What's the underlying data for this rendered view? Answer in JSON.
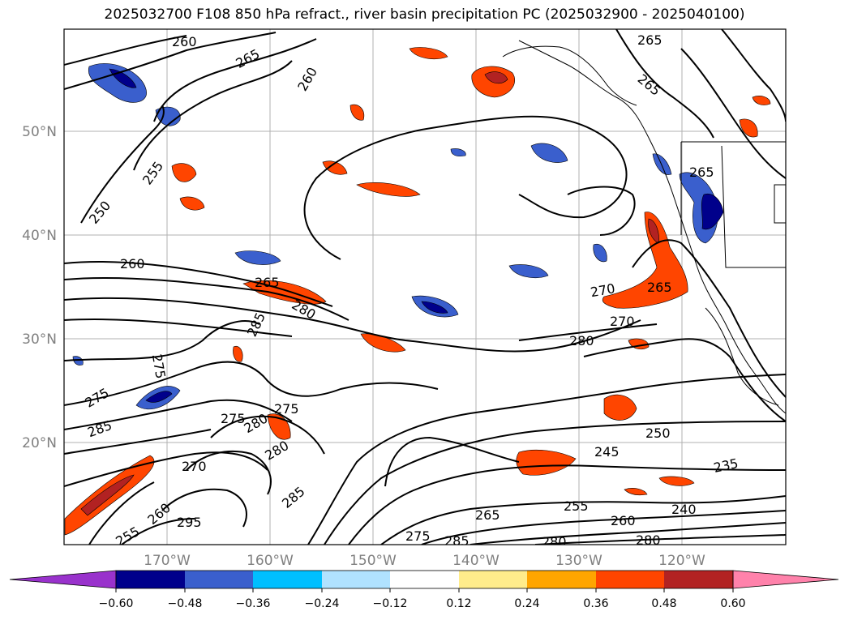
{
  "title": "2025032700 F108 850 hPa refract., river basin precipitation PC (2025032900 - 2025040100)",
  "lat_labels": [
    "50°N",
    "40°N",
    "30°N",
    "20°N"
  ],
  "lon_labels": [
    "170°W",
    "160°W",
    "150°W",
    "140°W",
    "130°W",
    "120°W"
  ],
  "colorbar": {
    "ticks": [
      "−0.60",
      "−0.48",
      "−0.36",
      "−0.24",
      "−0.12",
      "0.12",
      "0.24",
      "0.36",
      "0.48",
      "0.60"
    ],
    "colors": [
      "#9932cc",
      "#00008b",
      "#3a5fcd",
      "#00bfff",
      "#b0e2ff",
      "#ffffff",
      "#ffec8b",
      "#ffa500",
      "#ff4500",
      "#b22222",
      "#ff82ab"
    ]
  },
  "contour_labels": [
    "260",
    "265",
    "260",
    "265",
    "265",
    "255",
    "250",
    "260",
    "265",
    "280",
    "285",
    "275",
    "275",
    "285",
    "280",
    "275",
    "275",
    "270",
    "265",
    "270",
    "280",
    "250",
    "245",
    "235",
    "240",
    "255",
    "260",
    "265",
    "275",
    "285",
    "280",
    "280",
    "270",
    "285",
    "280",
    "295",
    "255",
    "260",
    "265"
  ],
  "colors": {
    "precip_pos": "#ff4500",
    "precip_neg": "#3a5fcd",
    "grid": "#b0b0b0"
  }
}
